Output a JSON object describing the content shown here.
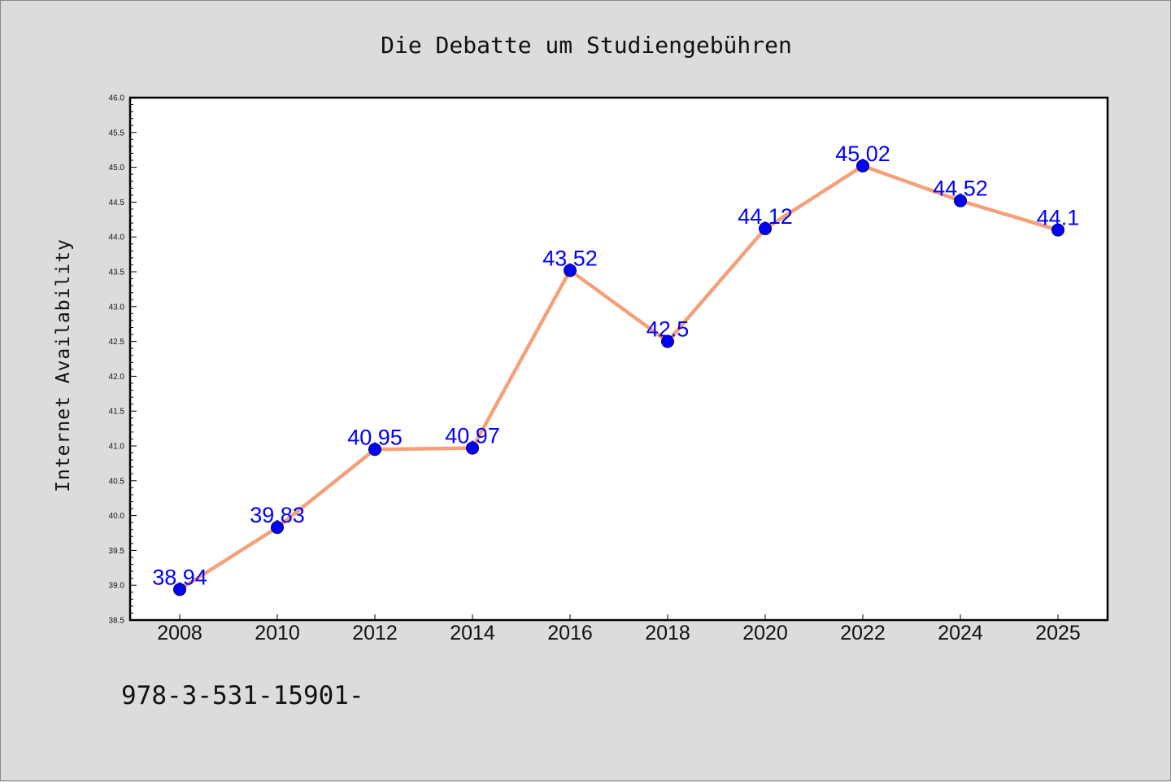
{
  "chart_data": {
    "type": "line",
    "title": "Die Debatte um Studiengebühren",
    "xlabel": "",
    "ylabel": "Internet Availability",
    "categories": [
      "2008",
      "2010",
      "2012",
      "2014",
      "2016",
      "2018",
      "2020",
      "2022",
      "2024",
      "2025"
    ],
    "series": [
      {
        "values": [
          38.94,
          39.83,
          40.95,
          40.97,
          43.52,
          42.5,
          44.12,
          45.02,
          44.52,
          44.1
        ],
        "data_labels": [
          "38.94",
          "39.83",
          "40.95",
          "40.97",
          "43.52",
          "42.5",
          "44.12",
          "45.02",
          "44.52",
          "44.1"
        ],
        "line_color": "#f4a07a",
        "marker_color": "#0000ff"
      }
    ],
    "ylim": [
      38.5,
      46.0
    ],
    "yticks": [
      "38.5",
      "39.0",
      "39.5",
      "40.0",
      "40.5",
      "41.0",
      "41.5",
      "42.0",
      "42.5",
      "43.0",
      "43.5",
      "44.0",
      "44.5",
      "45.0",
      "45.5",
      "46.0"
    ],
    "grid": false,
    "legend": "none"
  },
  "footer": {
    "text": "978-3-531-15901-"
  },
  "colors": {
    "background": "#dcdcdc",
    "plot_background": "#ffffff",
    "axis": "#000000",
    "label_color": "#0000ff"
  }
}
